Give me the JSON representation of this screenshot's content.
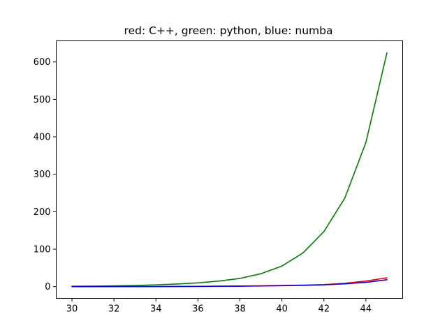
{
  "chart_data": {
    "type": "line",
    "title": "red: C++, green: python, blue: numba",
    "xlabel": "",
    "ylabel": "",
    "xlim": [
      29.25,
      45.75
    ],
    "ylim": [
      -31.3,
      656.3
    ],
    "xticks": [
      30,
      32,
      34,
      36,
      38,
      40,
      42,
      44
    ],
    "yticks": [
      0,
      100,
      200,
      300,
      400,
      500,
      600
    ],
    "grid": false,
    "x": [
      30,
      31,
      32,
      33,
      34,
      35,
      36,
      37,
      38,
      39,
      40,
      41,
      42,
      43,
      44,
      45
    ],
    "series": [
      {
        "color": "#ff0000",
        "values": [
          0.1,
          0.15,
          0.2,
          0.3,
          0.4,
          0.6,
          0.8,
          1.1,
          1.6,
          2.2,
          3,
          4,
          5.5,
          9,
          15,
          23.5
        ]
      },
      {
        "color": "#008000",
        "values": [
          1,
          1.5,
          2.2,
          3.2,
          4.8,
          7,
          10,
          15,
          22,
          34.5,
          55,
          90,
          147,
          237,
          385,
          624
        ]
      },
      {
        "color": "#0000ff",
        "values": [
          0.05,
          0.1,
          0.15,
          0.2,
          0.3,
          0.45,
          0.6,
          0.9,
          1.2,
          1.8,
          2.5,
          3.5,
          4.8,
          7.5,
          11.5,
          18.5
        ]
      }
    ]
  }
}
